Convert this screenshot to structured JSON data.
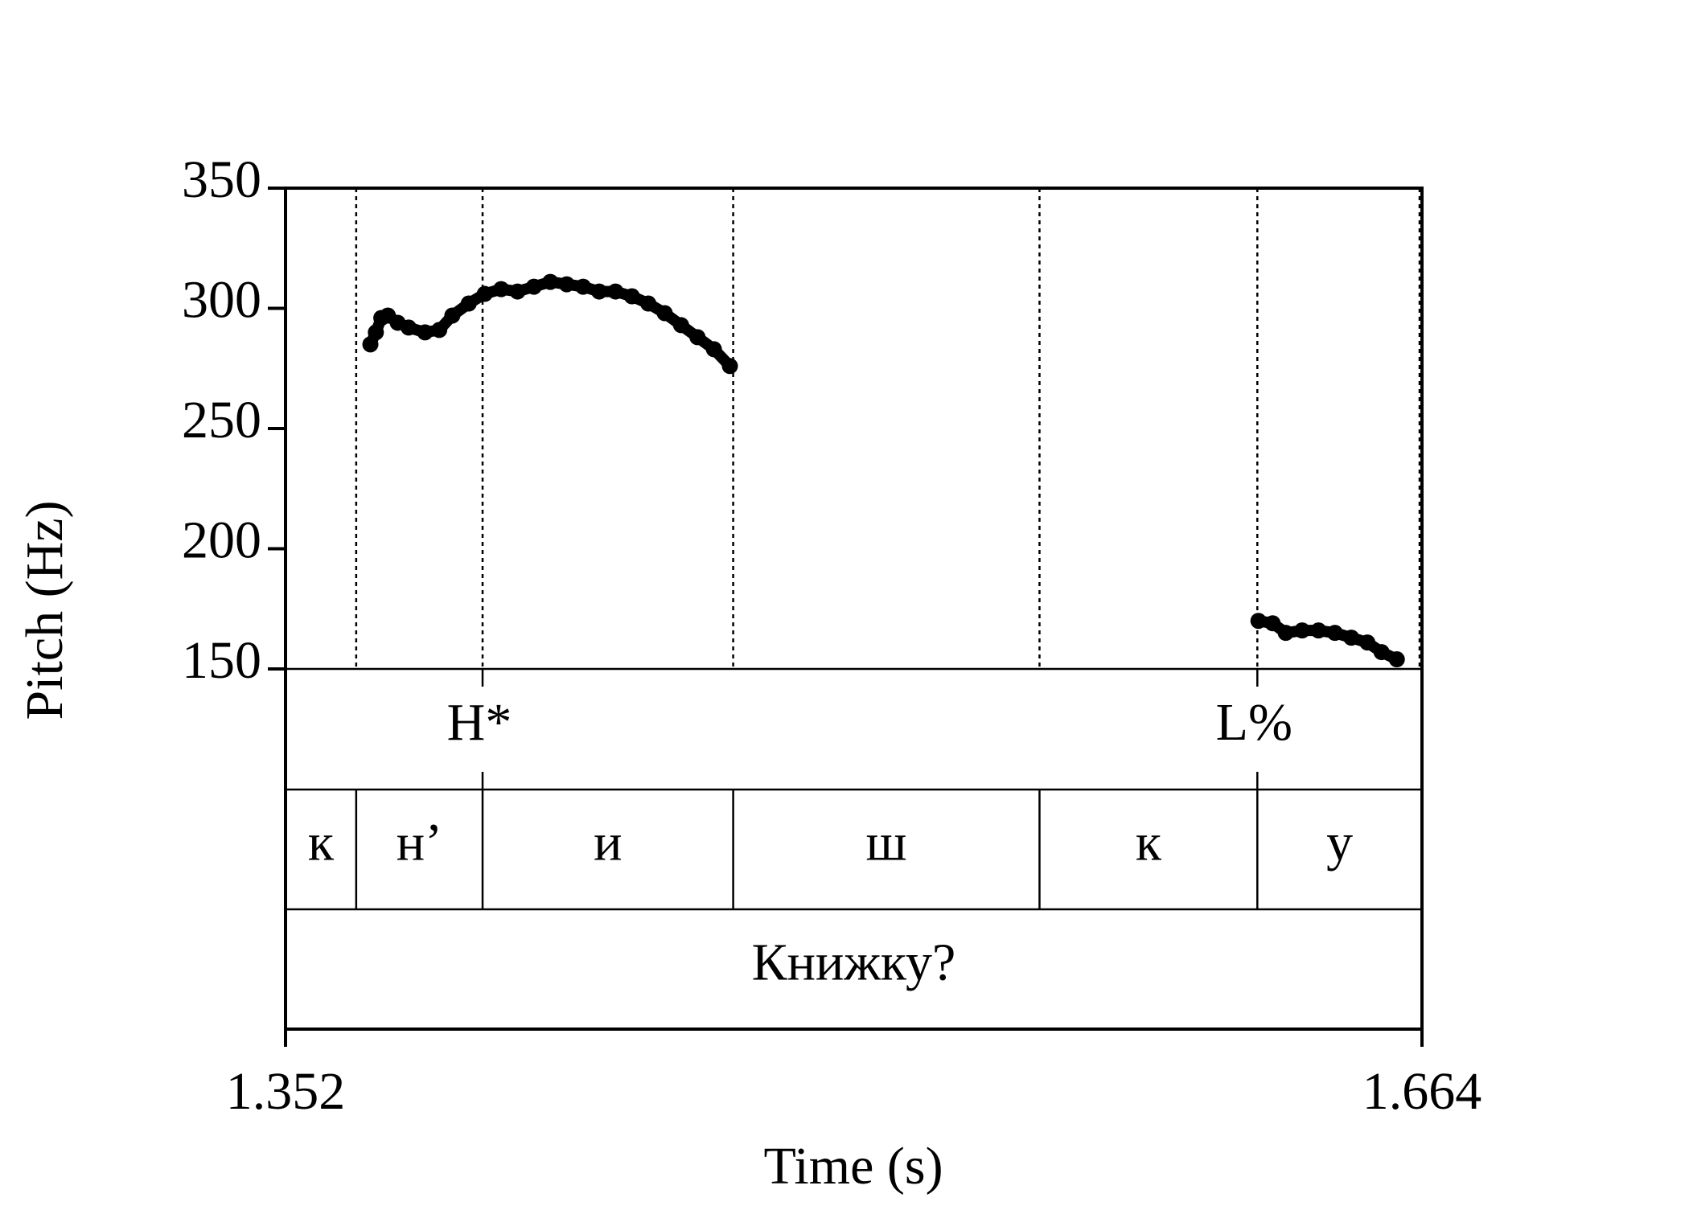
{
  "chart_data": {
    "type": "pitch",
    "ylabel": "Pitch (Hz)",
    "xlabel": "Time (s)",
    "xlim": [
      1.352,
      1.664
    ],
    "xticks": [
      1.352,
      1.664
    ],
    "ylim": [
      150,
      350
    ],
    "yticks": [
      150,
      200,
      250,
      300,
      350
    ],
    "color": "#000000",
    "series": [
      {
        "x": [
          1.3753,
          1.3768,
          1.3783,
          1.3801,
          1.3828,
          1.3858,
          1.3903,
          1.3942,
          1.3978,
          1.4023,
          1.4067,
          1.4112,
          1.4157,
          1.4202,
          1.4247,
          1.4292,
          1.4337,
          1.4381,
          1.4426,
          1.4471,
          1.4516,
          1.4561,
          1.4606,
          1.4651,
          1.4696,
          1.474
        ],
        "values": [
          285,
          290,
          296,
          297,
          294,
          292,
          290,
          291,
          297,
          302,
          306,
          308,
          307,
          309,
          311,
          310,
          309,
          307,
          307,
          305,
          302,
          298,
          293,
          288,
          283,
          276
        ]
      },
      {
        "x": [
          1.6191,
          1.623,
          1.6266,
          1.6311,
          1.6356,
          1.6401,
          1.6446,
          1.649,
          1.6529,
          1.6571
        ],
        "values": [
          170,
          169,
          165,
          166,
          166,
          165,
          163,
          161,
          157,
          154
        ]
      }
    ],
    "tone_tier": [
      {
        "time": 1.4061,
        "label": "H*"
      },
      {
        "time": 1.6188,
        "label": "L%"
      }
    ],
    "segment_tier": {
      "boundaries": [
        1.3714,
        1.4061,
        1.4749,
        1.559,
        1.6188
      ],
      "labels": [
        "к",
        "н’",
        "и",
        "ш",
        "к",
        "у"
      ]
    },
    "word_tier": {
      "label": "Книжку?"
    }
  }
}
